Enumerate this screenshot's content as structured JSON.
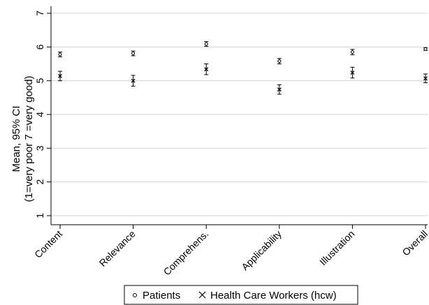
{
  "chart_data": {
    "type": "scatter",
    "ylabel_line1": "Mean, 95% CI",
    "ylabel_line2": "(1=very poor 7 =very good)",
    "xlabel": "",
    "ylim": [
      1,
      7
    ],
    "yticks": [
      1,
      2,
      3,
      4,
      5,
      6,
      7
    ],
    "grid": true,
    "legend_position": "bottom",
    "categories": [
      "Content",
      "Relevance",
      "Comprehens.",
      "Applicability",
      "Illustration",
      "Overall"
    ],
    "series": [
      {
        "name": "Patients",
        "marker": "circle",
        "values": [
          5.78,
          5.81,
          6.09,
          5.58,
          5.85,
          5.94
        ],
        "ci_low": [
          5.71,
          5.74,
          6.02,
          5.5,
          5.77,
          5.9
        ],
        "ci_high": [
          5.85,
          5.88,
          6.16,
          5.66,
          5.93,
          5.98
        ]
      },
      {
        "name": "Health Care Workers (hcw)",
        "marker": "x",
        "values": [
          5.14,
          5.0,
          5.34,
          4.74,
          5.24,
          5.07
        ],
        "ci_low": [
          5.0,
          4.84,
          5.18,
          4.6,
          5.08,
          4.94
        ],
        "ci_high": [
          5.28,
          5.16,
          5.5,
          4.88,
          5.4,
          5.2
        ]
      }
    ]
  }
}
